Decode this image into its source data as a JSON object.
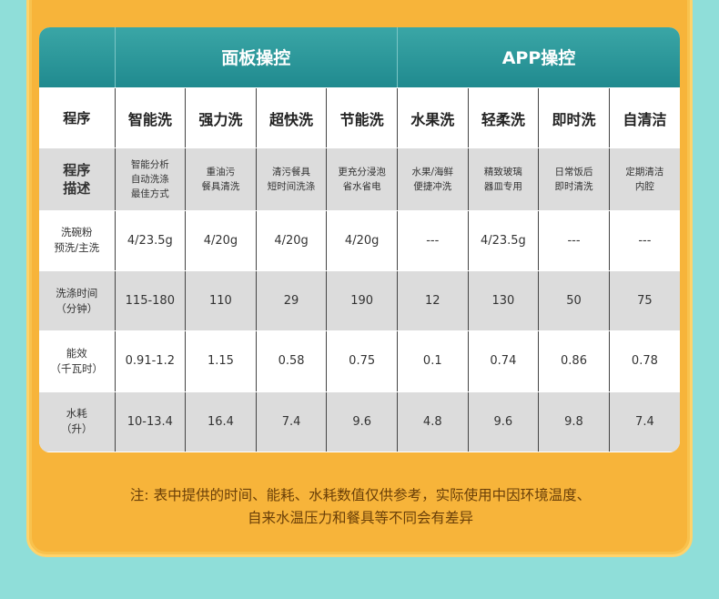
{
  "header": {
    "panel_control": "面板操控",
    "app_control": "APP操控"
  },
  "labels": {
    "program": "程序",
    "description": "程序\n描述",
    "detergent": "洗碗粉\n预洗/主洗",
    "wash_time": "洗涤时间\n（分钟）",
    "energy": "能效\n（千瓦时）",
    "water": "水耗\n（升）"
  },
  "programs": [
    {
      "name": "智能洗",
      "description": "智能分析\n自动洗涤\n最佳方式",
      "detergent": "4/23.5g",
      "wash_time": "115-180",
      "energy": "0.91-1.2",
      "water": "10-13.4"
    },
    {
      "name": "强力洗",
      "description": "重油污\n餐具清洗",
      "detergent": "4/20g",
      "wash_time": "110",
      "energy": "1.15",
      "water": "16.4"
    },
    {
      "name": "超快洗",
      "description": "清污餐具\n短时间洗涤",
      "detergent": "4/20g",
      "wash_time": "29",
      "energy": "0.58",
      "water": "7.4"
    },
    {
      "name": "节能洗",
      "description": "更充分浸泡\n省水省电",
      "detergent": "4/20g",
      "wash_time": "190",
      "energy": "0.75",
      "water": "9.6"
    },
    {
      "name": "水果洗",
      "description": "水果/海鲜\n便捷冲洗",
      "detergent": "---",
      "wash_time": "12",
      "energy": "0.1",
      "water": "4.8"
    },
    {
      "name": "轻柔洗",
      "description": "精致玻璃\n器皿专用",
      "detergent": "4/23.5g",
      "wash_time": "130",
      "energy": "0.74",
      "water": "9.6"
    },
    {
      "name": "即时洗",
      "description": "日常饭后\n即时清洗",
      "detergent": "---",
      "wash_time": "50",
      "energy": "0.86",
      "water": "9.8"
    },
    {
      "name": "自清洁",
      "description": "定期清洁\n内腔",
      "detergent": "---",
      "wash_time": "75",
      "energy": "0.78",
      "water": "7.4"
    }
  ],
  "note": {
    "line1": "注: 表中提供的时间、能耗、水耗数值仅供参考，实际使用中因环境温度、",
    "line2": "自来水温压力和餐具等不同会有差异"
  }
}
